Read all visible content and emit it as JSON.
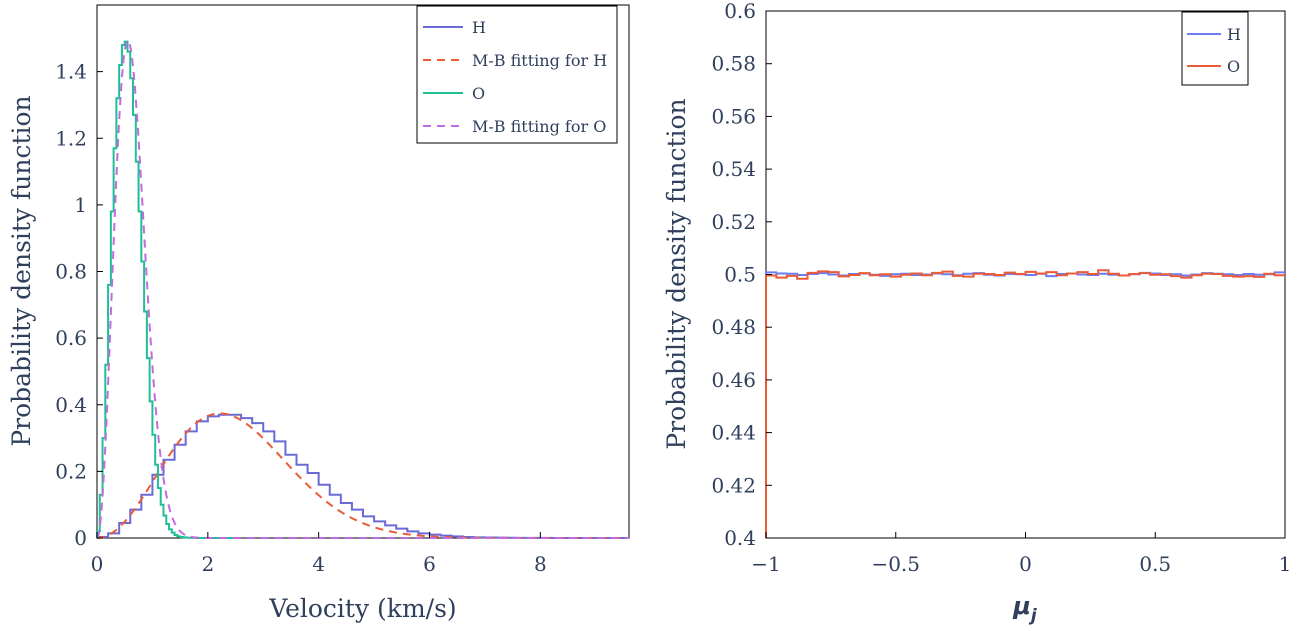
{
  "chart_data": [
    {
      "type": "line",
      "xlabel": "Velocity (km/s)",
      "ylabel": "Probability density function",
      "xlim": [
        0,
        9.6
      ],
      "ylim": [
        0,
        1.6
      ],
      "xticks": [
        0,
        2,
        4,
        6,
        8
      ],
      "xtick_labels": [
        "0",
        "2",
        "4",
        "6",
        "8"
      ],
      "yticks": [
        0,
        0.2,
        0.4,
        0.6,
        0.8,
        1.0,
        1.2,
        1.4
      ],
      "ytick_labels": [
        "0",
        "0.2",
        "0.4",
        "0.6",
        "0.8",
        "1",
        "1.2",
        "1.4"
      ],
      "grid": false,
      "legend_position": "top-right",
      "series": [
        {
          "name": "H",
          "style": "step",
          "color": "#6a6ad6",
          "x": [
            0.0,
            0.2,
            0.4,
            0.6,
            0.8,
            1.0,
            1.2,
            1.4,
            1.6,
            1.8,
            2.0,
            2.2,
            2.4,
            2.6,
            2.8,
            3.0,
            3.2,
            3.4,
            3.6,
            3.8,
            4.0,
            4.2,
            4.4,
            4.6,
            4.8,
            5.0,
            5.2,
            5.4,
            5.6,
            5.8,
            6.0,
            6.2,
            6.4,
            6.6,
            6.8,
            7.0,
            7.2,
            7.4,
            7.6,
            7.8,
            8.0,
            8.2,
            8.4,
            8.6,
            8.8,
            9.0,
            9.2,
            9.4
          ],
          "y": [
            0.003,
            0.014,
            0.045,
            0.085,
            0.13,
            0.19,
            0.235,
            0.28,
            0.32,
            0.35,
            0.365,
            0.37,
            0.37,
            0.36,
            0.345,
            0.32,
            0.29,
            0.25,
            0.22,
            0.195,
            0.16,
            0.13,
            0.105,
            0.085,
            0.065,
            0.05,
            0.038,
            0.028,
            0.02,
            0.014,
            0.01,
            0.007,
            0.005,
            0.003,
            0.002,
            0.0015,
            0.001,
            0.0007,
            0.0005,
            0.0003,
            0.0002,
            0.0001,
            0.0001,
            0.0,
            0.0,
            0.0,
            0.0,
            0.0
          ]
        },
        {
          "name": "M-B fitting for H",
          "style": "dashed",
          "color": "#ea5c38",
          "a_kms": 1.57
        },
        {
          "name": "O",
          "style": "step",
          "color": "#1fbf96",
          "x": [
            0.0,
            0.05,
            0.1,
            0.15,
            0.2,
            0.25,
            0.3,
            0.35,
            0.4,
            0.45,
            0.5,
            0.55,
            0.6,
            0.65,
            0.7,
            0.75,
            0.8,
            0.85,
            0.9,
            0.95,
            1.0,
            1.05,
            1.1,
            1.15,
            1.2,
            1.25,
            1.3,
            1.35,
            1.4,
            1.45,
            1.5,
            1.55,
            1.6,
            1.65,
            1.7,
            1.75,
            1.8,
            1.85,
            1.9,
            1.95,
            2.0,
            2.1,
            2.2,
            2.3,
            2.4,
            2.5
          ],
          "y": [
            0.02,
            0.13,
            0.3,
            0.52,
            0.76,
            0.98,
            1.17,
            1.32,
            1.42,
            1.48,
            1.49,
            1.46,
            1.38,
            1.27,
            1.13,
            0.98,
            0.83,
            0.68,
            0.54,
            0.41,
            0.31,
            0.22,
            0.15,
            0.1,
            0.067,
            0.042,
            0.026,
            0.016,
            0.009,
            0.005,
            0.003,
            0.002,
            0.001,
            0.0006,
            0.0003,
            0.0002,
            0.0001,
            0.0,
            0.0,
            0.0,
            0.0,
            0.0,
            0.0,
            0.0,
            0.0,
            0.0
          ]
        },
        {
          "name": "M-B fitting for O",
          "style": "dashed",
          "color": "#c06be0",
          "a_kms": 0.393
        }
      ]
    },
    {
      "type": "line",
      "xlabel": "μ",
      "xlabel_sub": "j",
      "ylabel": "Probability density function",
      "xlim": [
        -1,
        1
      ],
      "ylim": [
        0.4,
        0.6
      ],
      "xticks": [
        -1,
        -0.5,
        0,
        0.5,
        1
      ],
      "xtick_labels": [
        "−1",
        "−0.5",
        "0",
        "0.5",
        "1"
      ],
      "yticks": [
        0.4,
        0.42,
        0.44,
        0.46,
        0.48,
        0.5,
        0.52,
        0.54,
        0.56,
        0.58,
        0.6
      ],
      "ytick_labels": [
        "0.4",
        "0.42",
        "0.44",
        "0.46",
        "0.48",
        "0.5",
        "0.52",
        "0.54",
        "0.56",
        "0.58",
        "0.6"
      ],
      "grid": false,
      "legend_position": "top-right",
      "series": [
        {
          "name": "H",
          "style": "step",
          "color": "#6c7cf4",
          "x": [
            -1.0,
            -0.96,
            -0.92,
            -0.88,
            -0.84,
            -0.8,
            -0.76,
            -0.72,
            -0.68,
            -0.64,
            -0.6,
            -0.56,
            -0.52,
            -0.48,
            -0.44,
            -0.4,
            -0.36,
            -0.32,
            -0.28,
            -0.24,
            -0.2,
            -0.16,
            -0.12,
            -0.08,
            -0.04,
            0.0,
            0.04,
            0.08,
            0.12,
            0.16,
            0.2,
            0.24,
            0.28,
            0.32,
            0.36,
            0.4,
            0.44,
            0.48,
            0.52,
            0.56,
            0.6,
            0.64,
            0.68,
            0.72,
            0.76,
            0.8,
            0.84,
            0.88,
            0.92,
            0.96
          ],
          "y": [
            0.5008,
            0.5004,
            0.5003,
            0.4998,
            0.5002,
            0.5005,
            0.5,
            0.4996,
            0.5002,
            0.5004,
            0.4999,
            0.4995,
            0.5001,
            0.5003,
            0.4998,
            0.5,
            0.5004,
            0.5001,
            0.4997,
            0.5003,
            0.5005,
            0.4999,
            0.4996,
            0.5002,
            0.5001,
            0.4998,
            0.5003,
            0.4994,
            0.5002,
            0.5004,
            0.5,
            0.4998,
            0.5003,
            0.4999,
            0.4996,
            0.5001,
            0.5006,
            0.5004,
            0.4998,
            0.5001,
            0.4996,
            0.5,
            0.5005,
            0.5003,
            0.5001,
            0.4998,
            0.5002,
            0.4999,
            0.5001,
            0.5008
          ]
        },
        {
          "name": "O",
          "style": "step",
          "color": "#ea5c38",
          "x": [
            -1.0,
            -0.96,
            -0.92,
            -0.88,
            -0.84,
            -0.8,
            -0.76,
            -0.72,
            -0.68,
            -0.64,
            -0.6,
            -0.56,
            -0.52,
            -0.48,
            -0.44,
            -0.4,
            -0.36,
            -0.32,
            -0.28,
            -0.24,
            -0.2,
            -0.16,
            -0.12,
            -0.08,
            -0.04,
            0.0,
            0.04,
            0.08,
            0.12,
            0.16,
            0.2,
            0.24,
            0.28,
            0.32,
            0.36,
            0.4,
            0.44,
            0.48,
            0.52,
            0.56,
            0.6,
            0.64,
            0.68,
            0.72,
            0.76,
            0.8,
            0.84,
            0.88,
            0.92,
            0.96
          ],
          "y": [
            0.4996,
            0.4988,
            0.4995,
            0.4984,
            0.5006,
            0.5012,
            0.5009,
            0.4993,
            0.4998,
            0.5005,
            0.4997,
            0.5001,
            0.4992,
            0.4999,
            0.5004,
            0.4997,
            0.5006,
            0.5011,
            0.4995,
            0.4992,
            0.5003,
            0.5002,
            0.4998,
            0.5007,
            0.5002,
            0.501,
            0.5004,
            0.5009,
            0.4997,
            0.5004,
            0.5009,
            0.5002,
            0.5016,
            0.5003,
            0.4996,
            0.5002,
            0.5005,
            0.4999,
            0.5001,
            0.4994,
            0.4988,
            0.4997,
            0.5003,
            0.5002,
            0.4995,
            0.4992,
            0.4994,
            0.4991,
            0.5003,
            0.4997
          ]
        }
      ]
    }
  ]
}
